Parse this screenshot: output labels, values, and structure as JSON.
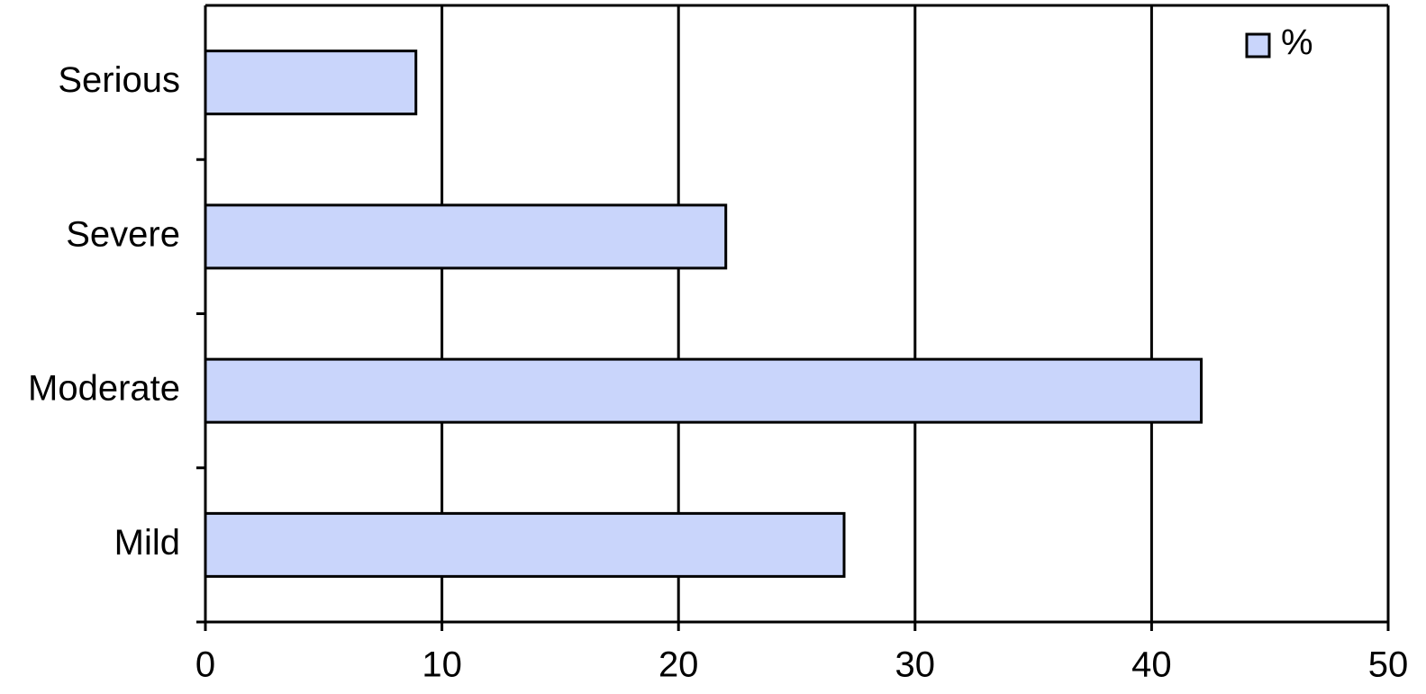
{
  "chart_data": {
    "type": "bar",
    "orientation": "horizontal",
    "categories": [
      "Serious",
      "Severe",
      "Moderate",
      "Mild"
    ],
    "series": [
      {
        "name": "%",
        "color": "#c9d5fb",
        "values": [
          8.9,
          22,
          42.1,
          27
        ]
      }
    ],
    "xlim": [
      0,
      50
    ],
    "xticks": [
      0,
      10,
      20,
      30,
      40,
      50
    ],
    "grid": true,
    "legend": "upper right"
  }
}
